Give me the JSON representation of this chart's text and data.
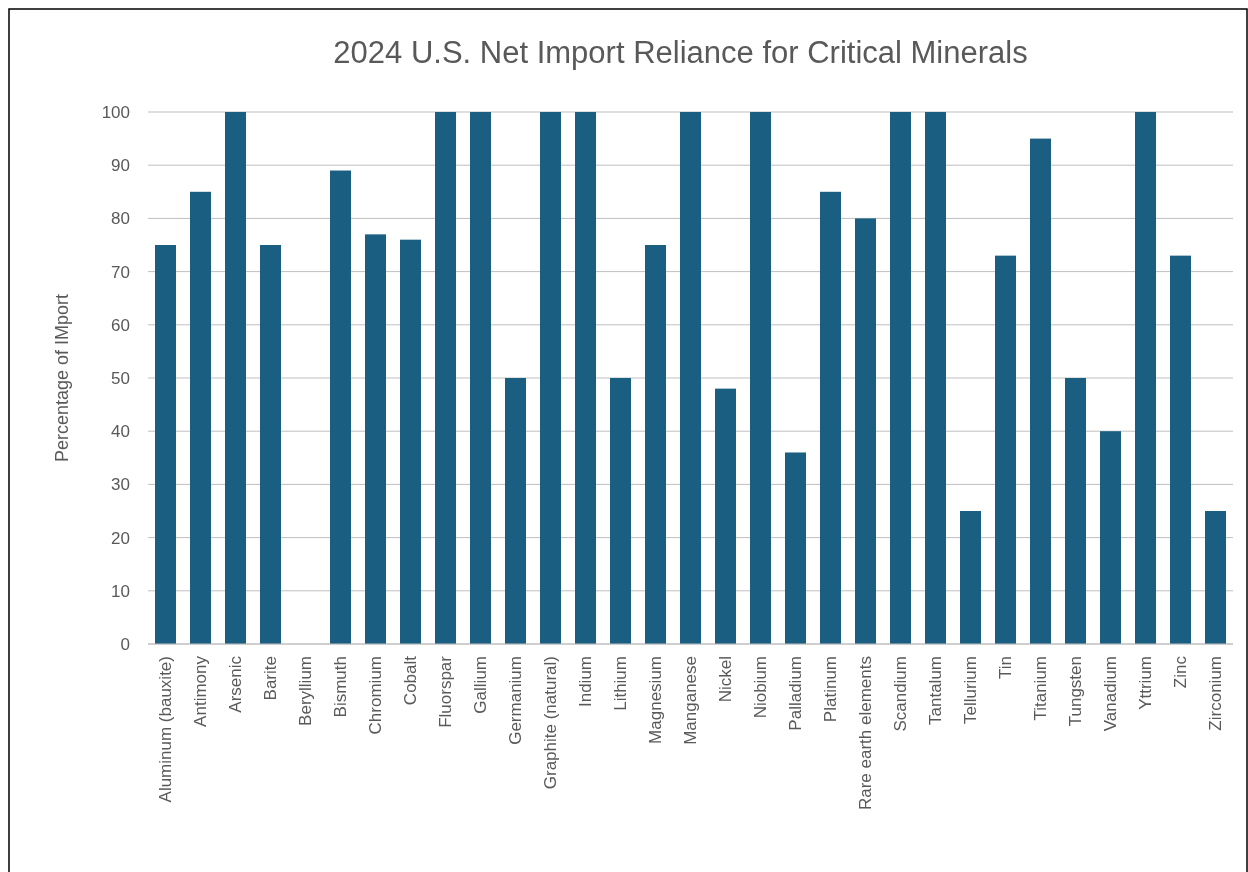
{
  "chart_data": {
    "type": "bar",
    "title": "2024 U.S. Net Import Reliance for Critical Minerals",
    "ylabel": "Percentage of IMport",
    "categories": [
      "Aluminum (bauxite)",
      "Antimony",
      "Arsenic",
      "Barite",
      "Beryllium",
      "Bismuth",
      "Chromium",
      "Cobalt",
      "Fluorspar",
      "Gallium",
      "Germanium",
      "Graphite (natural)",
      "Indium",
      "Lithium",
      "Magnesium",
      "Manganese",
      "Nickel",
      "Niobium",
      "Palladium",
      "Platinum",
      "Rare earth elements",
      "Scandium",
      "Tantalum",
      "Tellurium",
      "Tin",
      "Titanium",
      "Tungsten",
      "Vanadium",
      "Yttrium",
      "Zinc",
      "Zirconium"
    ],
    "values": [
      75,
      85,
      100,
      75,
      0,
      89,
      77,
      76,
      100,
      100,
      50,
      100,
      100,
      50,
      75,
      100,
      48,
      100,
      36,
      85,
      80,
      100,
      100,
      25,
      73,
      95,
      50,
      40,
      100,
      73,
      25
    ],
    "color": "#1a5f82",
    "ylim": [
      0,
      100
    ],
    "yticks": [
      0,
      10,
      20,
      30,
      40,
      50,
      60,
      70,
      80,
      90,
      100
    ],
    "grid": "y"
  }
}
